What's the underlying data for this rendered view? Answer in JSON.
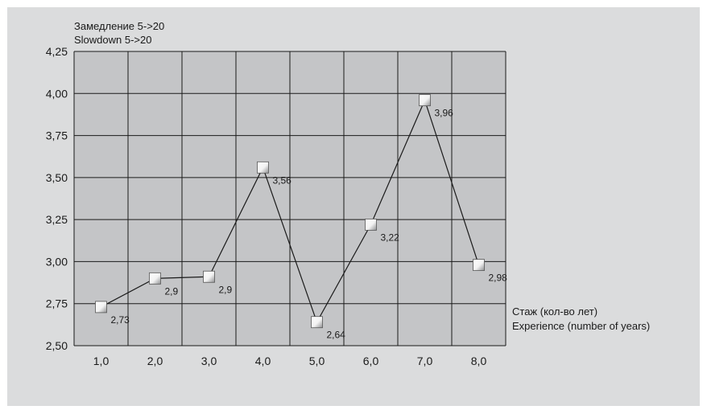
{
  "chart_data": {
    "type": "line",
    "ylabel_lines": [
      "Замедление 5->20",
      "Slowdown 5->20"
    ],
    "xlabel_lines": [
      "Стаж (кол-во лет)",
      "Experience (number of years)"
    ],
    "x_tick_labels": [
      "1,0",
      "2,0",
      "3,0",
      "4,0",
      "5,0",
      "6,0",
      "7,0",
      "8,0"
    ],
    "y_tick_labels": [
      "2,50",
      "2,75",
      "3,00",
      "3,25",
      "3,50",
      "3,75",
      "4,00",
      "4,25"
    ],
    "ylim": [
      2.5,
      4.25
    ],
    "grid": true,
    "x": [
      1,
      2,
      3,
      4,
      5,
      6,
      7,
      8
    ],
    "values": [
      2.73,
      2.9,
      2.91,
      3.56,
      2.64,
      3.22,
      3.96,
      2.98
    ],
    "data_labels": [
      "2,73",
      "2,9",
      "2,9",
      "3,56",
      "2,64",
      "3,22",
      "3,96",
      "2,98"
    ],
    "colors": {
      "plot_bg": "#c4c5c7",
      "page_bg": "#dbdcdd",
      "grid": "#1a1a1a",
      "line": "#1a1a1a"
    }
  }
}
